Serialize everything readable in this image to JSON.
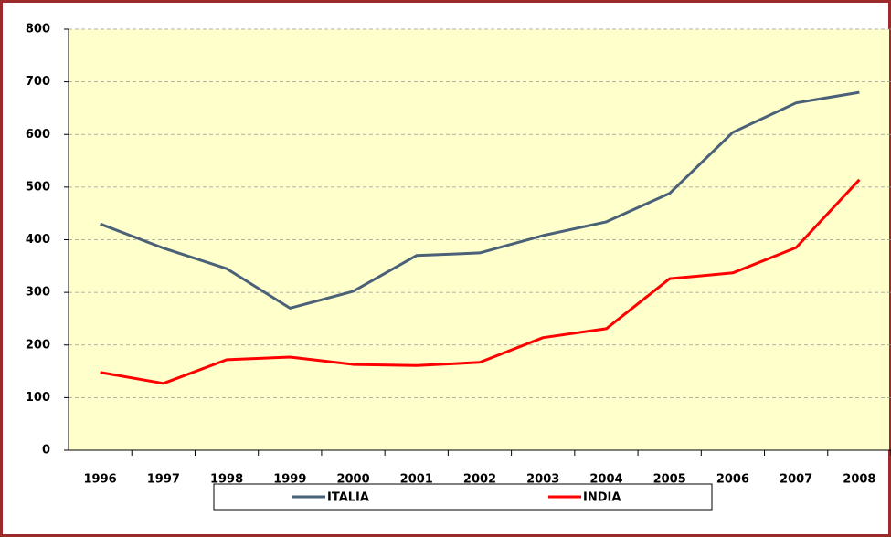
{
  "chart_data": {
    "type": "line",
    "categories": [
      "1996",
      "1997",
      "1998",
      "1999",
      "2000",
      "2001",
      "2002",
      "2003",
      "2004",
      "2005",
      "2006",
      "2007",
      "2008"
    ],
    "series": [
      {
        "name": "ITALIA",
        "color": "#4a6178",
        "values": [
          430,
          384,
          345,
          270,
          302,
          370,
          375,
          408,
          434,
          488,
          604,
          660,
          680
        ]
      },
      {
        "name": "INDIA",
        "color": "#ff0000",
        "values": [
          148,
          127,
          172,
          177,
          163,
          161,
          167,
          214,
          231,
          326,
          337,
          385,
          514
        ]
      }
    ],
    "ylim": [
      0,
      800
    ],
    "yticks": [
      0,
      100,
      200,
      300,
      400,
      500,
      600,
      700,
      800
    ],
    "grid": true,
    "legend": "bottom"
  }
}
